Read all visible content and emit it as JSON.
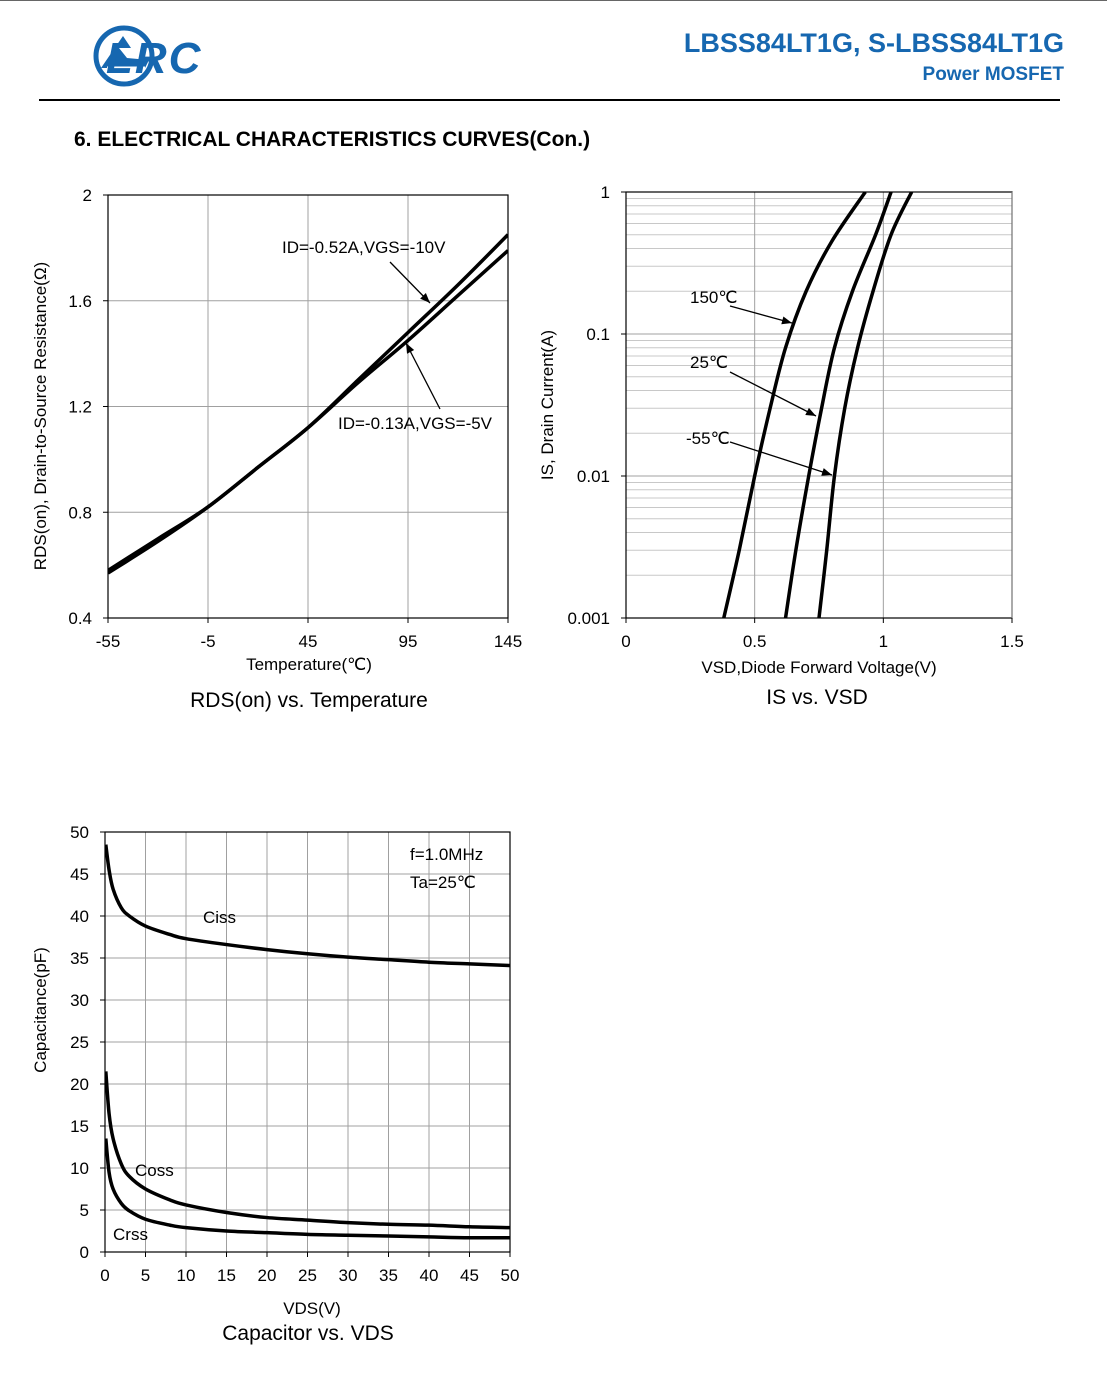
{
  "header": {
    "brand": "LRC",
    "part_number": "LBSS84LT1G, S-LBSS84LT1G",
    "subtitle": "Power MOSFET",
    "brand_color": "#1667b0",
    "logo_icon": "lrc-wing-logo-icon"
  },
  "section_title": "6. ELECTRICAL CHARACTERISTICS CURVES(Con.)",
  "chart_data": [
    {
      "id": "rds",
      "type": "line",
      "caption": "RDS(on) vs. Temperature",
      "xlabel": "Temperature(℃)",
      "ylabel": "RDS(on), Drain-to-Source Resistance(Ω)",
      "xlim": [
        -55,
        145
      ],
      "ylim": [
        0.4,
        2
      ],
      "xticks": [
        -55,
        -5,
        45,
        95,
        145
      ],
      "xtick_labels": [
        "-55",
        "-5",
        "45",
        "95",
        "145"
      ],
      "yticks": [
        0.4,
        0.8,
        1.2,
        1.6,
        2
      ],
      "ytick_labels": [
        "0.4",
        "0.8",
        "1.2",
        "1.6",
        "2"
      ],
      "grid": true,
      "series": [
        {
          "name": "ID=-0.52A,VGS=-10V",
          "x": [
            -55,
            -30,
            -5,
            20,
            45,
            70,
            95,
            120,
            145
          ],
          "y": [
            0.58,
            0.7,
            0.82,
            0.97,
            1.12,
            1.3,
            1.48,
            1.66,
            1.85
          ]
        },
        {
          "name": "ID=-0.13A,VGS=-5V",
          "x": [
            -55,
            -30,
            -5,
            20,
            45,
            70,
            95,
            120,
            145
          ],
          "y": [
            0.57,
            0.69,
            0.82,
            0.97,
            1.12,
            1.29,
            1.45,
            1.62,
            1.79
          ]
        }
      ],
      "annotations": [
        "ID=-0.52A,VGS=-10V",
        "ID=-0.13A,VGS=-5V"
      ]
    },
    {
      "id": "isvsd",
      "type": "line",
      "caption": "IS vs. VSD",
      "xlabel": "VSD,Diode Forward Voltage(V)",
      "ylabel": "IS, Drain Current(A)",
      "xlim": [
        0,
        1.5
      ],
      "ylim": [
        0.001,
        1
      ],
      "yscale": "log",
      "xticks": [
        0,
        0.5,
        1,
        1.5
      ],
      "xtick_labels": [
        "0",
        "0.5",
        "1",
        "1.5"
      ],
      "yticks": [
        0.001,
        0.01,
        0.1,
        1
      ],
      "ytick_labels": [
        "0.001",
        "0.01",
        "0.1",
        "1"
      ],
      "grid": true,
      "series": [
        {
          "name": "150℃",
          "x": [
            0.38,
            0.44,
            0.5,
            0.56,
            0.62,
            0.7,
            0.8,
            0.93
          ],
          "y": [
            0.001,
            0.003,
            0.01,
            0.03,
            0.08,
            0.2,
            0.45,
            1.0
          ]
        },
        {
          "name": "25℃",
          "x": [
            0.62,
            0.66,
            0.71,
            0.76,
            0.81,
            0.88,
            0.97,
            1.03
          ],
          "y": [
            0.001,
            0.003,
            0.01,
            0.03,
            0.08,
            0.2,
            0.5,
            1.0
          ]
        },
        {
          "name": "-55℃",
          "x": [
            0.75,
            0.78,
            0.81,
            0.85,
            0.9,
            0.96,
            1.03,
            1.11
          ],
          "y": [
            0.001,
            0.003,
            0.01,
            0.03,
            0.08,
            0.2,
            0.5,
            1.0
          ]
        }
      ],
      "annotations": [
        "150℃",
        "25℃",
        "-55℃"
      ]
    },
    {
      "id": "cap",
      "type": "line",
      "caption": "Capacitor vs.  VDS",
      "xlabel": "VDS(V)",
      "ylabel": "Capacitance(pF)",
      "xlim": [
        0,
        50
      ],
      "ylim": [
        0,
        50
      ],
      "xticks": [
        0,
        5,
        10,
        15,
        20,
        25,
        30,
        35,
        40,
        45,
        50
      ],
      "xtick_labels": [
        "0",
        "5",
        "10",
        "15",
        "20",
        "25",
        "30",
        "35",
        "40",
        "45",
        "50"
      ],
      "yticks": [
        0,
        5,
        10,
        15,
        20,
        25,
        30,
        35,
        40,
        45,
        50
      ],
      "ytick_labels": [
        "0",
        "5",
        "10",
        "15",
        "20",
        "25",
        "30",
        "35",
        "40",
        "45",
        "50"
      ],
      "grid": true,
      "conditions": [
        "f=1.0MHz",
        "Ta=25℃"
      ],
      "series": [
        {
          "name": "Ciss",
          "x": [
            0.1,
            0.5,
            1,
            2,
            3,
            5,
            8,
            10,
            15,
            20,
            25,
            30,
            35,
            40,
            45,
            50
          ],
          "y": [
            48.5,
            45.5,
            43.2,
            41.0,
            40.0,
            38.8,
            37.8,
            37.3,
            36.6,
            36.0,
            35.5,
            35.1,
            34.8,
            34.5,
            34.3,
            34.1
          ]
        },
        {
          "name": "Coss",
          "x": [
            0.1,
            0.5,
            1,
            2,
            3,
            5,
            8,
            10,
            15,
            20,
            25,
            30,
            35,
            40,
            45,
            50
          ],
          "y": [
            21.5,
            16.5,
            13.5,
            10.5,
            9.0,
            7.5,
            6.2,
            5.6,
            4.7,
            4.1,
            3.8,
            3.5,
            3.3,
            3.2,
            3.0,
            2.9
          ]
        },
        {
          "name": "Crss",
          "x": [
            0.1,
            0.5,
            1,
            2,
            3,
            5,
            8,
            10,
            15,
            20,
            25,
            30,
            35,
            40,
            45,
            50
          ],
          "y": [
            13.5,
            9.5,
            7.5,
            5.8,
            4.9,
            3.9,
            3.2,
            2.9,
            2.5,
            2.3,
            2.1,
            2.0,
            1.9,
            1.8,
            1.7,
            1.7
          ]
        }
      ],
      "annotations": [
        "Ciss",
        "Coss",
        "Crss"
      ]
    }
  ]
}
